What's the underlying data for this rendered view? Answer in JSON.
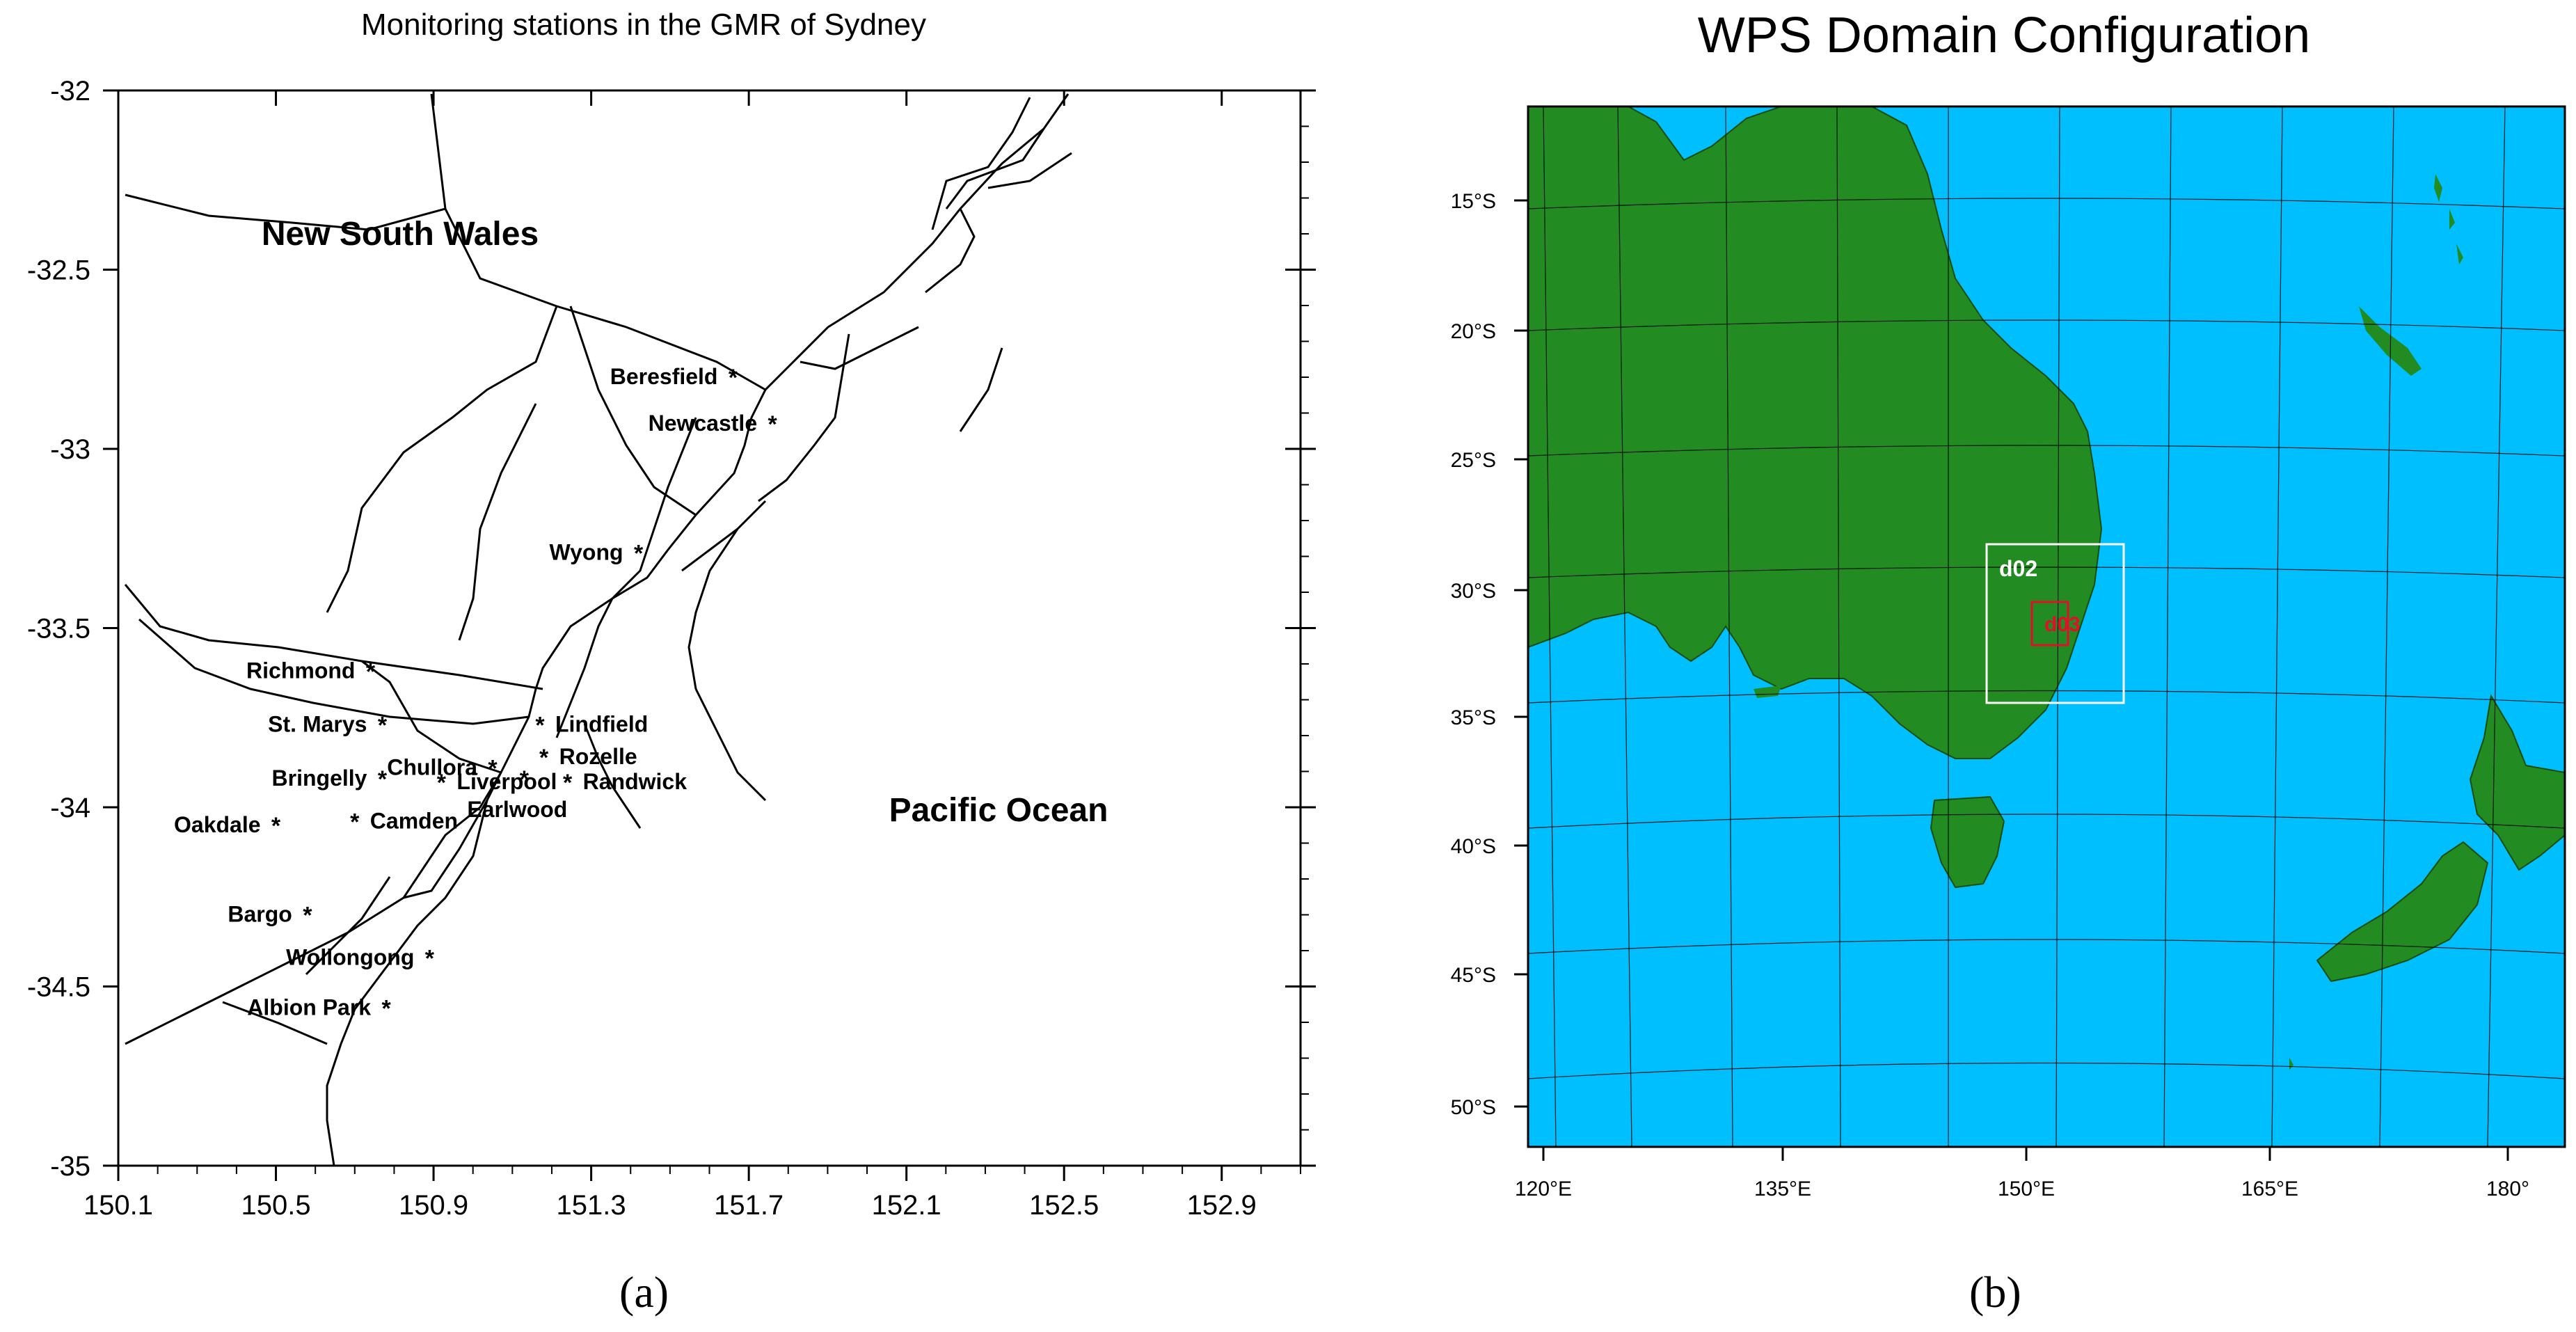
{
  "panel_a": {
    "title": "Monitoring stations in the GMR of Sydney",
    "caption": "(a)",
    "region_labels": {
      "land": "New South Wales",
      "ocean": "Pacific Ocean"
    },
    "x_ticks": [
      "150.1",
      "150.5",
      "150.9",
      "151.3",
      "151.7",
      "152.1",
      "152.5",
      "152.9"
    ],
    "y_ticks": [
      "-32",
      "-32.5",
      "-33",
      "-33.5",
      "-34",
      "-34.5",
      "-35"
    ],
    "stations": [
      {
        "name": "Beresfield",
        "lon": 151.66,
        "lat": -32.8,
        "label_side": "left"
      },
      {
        "name": "Newcastle",
        "lon": 151.76,
        "lat": -32.93,
        "label_side": "left"
      },
      {
        "name": "Wyong",
        "lon": 151.42,
        "lat": -33.29,
        "label_side": "left"
      },
      {
        "name": "Richmond",
        "lon": 150.74,
        "lat": -33.62,
        "label_side": "left"
      },
      {
        "name": "St. Marys",
        "lon": 150.77,
        "lat": -33.77,
        "label_side": "left"
      },
      {
        "name": "Lindfield",
        "lon": 151.17,
        "lat": -33.77,
        "label_side": "right"
      },
      {
        "name": "Rozelle",
        "lon": 151.18,
        "lat": -33.86,
        "label_side": "right"
      },
      {
        "name": "Chullora",
        "lon": 151.05,
        "lat": -33.89,
        "label_side": "left"
      },
      {
        "name": "Bringelly",
        "lon": 150.77,
        "lat": -33.92,
        "label_side": "left"
      },
      {
        "name": "Liverpool",
        "lon": 150.92,
        "lat": -33.93,
        "label_side": "right"
      },
      {
        "name": "Randwick",
        "lon": 151.24,
        "lat": -33.93,
        "label_side": "right"
      },
      {
        "name": "Earlwood",
        "lon": 151.13,
        "lat": -33.92,
        "label_side": "below"
      },
      {
        "name": "Oakdale",
        "lon": 150.5,
        "lat": -34.05,
        "label_side": "left"
      },
      {
        "name": "Camden",
        "lon": 150.7,
        "lat": -34.04,
        "label_side": "right"
      },
      {
        "name": "Bargo",
        "lon": 150.58,
        "lat": -34.3,
        "label_side": "left"
      },
      {
        "name": "Wollongong",
        "lon": 150.89,
        "lat": -34.42,
        "label_side": "left"
      },
      {
        "name": "Albion Park",
        "lon": 150.78,
        "lat": -34.56,
        "label_side": "left"
      }
    ]
  },
  "panel_b": {
    "title": "WPS Domain Configuration",
    "caption": "(b)",
    "x_ticks": [
      "120°E",
      "135°E",
      "150°E",
      "165°E",
      "180°"
    ],
    "y_ticks": [
      "15°S",
      "20°S",
      "25°S",
      "30°S",
      "35°S",
      "40°S",
      "45°S",
      "50°S"
    ],
    "domains": [
      {
        "name": "d02",
        "color": "#ffffff"
      },
      {
        "name": "d03",
        "color": "#e0102a"
      }
    ],
    "colors": {
      "land": "#228b22",
      "ocean": "#00bfff"
    }
  }
}
